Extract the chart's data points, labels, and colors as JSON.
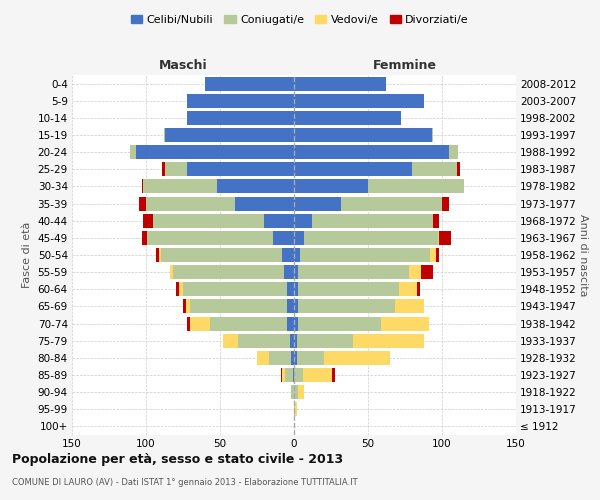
{
  "age_groups": [
    "100+",
    "95-99",
    "90-94",
    "85-89",
    "80-84",
    "75-79",
    "70-74",
    "65-69",
    "60-64",
    "55-59",
    "50-54",
    "45-49",
    "40-44",
    "35-39",
    "30-34",
    "25-29",
    "20-24",
    "15-19",
    "10-14",
    "5-9",
    "0-4"
  ],
  "birth_years": [
    "≤ 1912",
    "1913-1917",
    "1918-1922",
    "1923-1927",
    "1928-1932",
    "1933-1937",
    "1938-1942",
    "1943-1947",
    "1948-1952",
    "1953-1957",
    "1958-1962",
    "1963-1967",
    "1968-1972",
    "1973-1977",
    "1978-1982",
    "1983-1987",
    "1988-1992",
    "1993-1997",
    "1998-2002",
    "2003-2007",
    "2008-2012"
  ],
  "males": {
    "celibi": [
      0,
      0,
      0,
      1,
      2,
      3,
      5,
      5,
      5,
      7,
      8,
      14,
      20,
      40,
      52,
      72,
      107,
      87,
      72,
      72,
      60
    ],
    "coniugati": [
      0,
      0,
      2,
      5,
      15,
      35,
      52,
      65,
      70,
      75,
      82,
      85,
      75,
      60,
      50,
      15,
      4,
      1,
      0,
      0,
      0
    ],
    "vedovi": [
      0,
      0,
      0,
      2,
      8,
      10,
      13,
      3,
      3,
      2,
      1,
      0,
      0,
      0,
      0,
      0,
      0,
      0,
      0,
      0,
      0
    ],
    "divorziati": [
      0,
      0,
      0,
      1,
      0,
      0,
      2,
      2,
      2,
      0,
      2,
      4,
      7,
      5,
      1,
      2,
      0,
      0,
      0,
      0,
      0
    ]
  },
  "females": {
    "nubili": [
      0,
      0,
      0,
      0,
      2,
      2,
      3,
      3,
      3,
      3,
      4,
      7,
      12,
      32,
      50,
      80,
      105,
      93,
      72,
      88,
      62
    ],
    "coniugate": [
      0,
      1,
      3,
      6,
      18,
      38,
      56,
      65,
      68,
      75,
      88,
      90,
      82,
      68,
      65,
      30,
      6,
      1,
      0,
      0,
      0
    ],
    "vedove": [
      0,
      1,
      4,
      20,
      45,
      48,
      32,
      20,
      12,
      8,
      4,
      1,
      0,
      0,
      0,
      0,
      0,
      0,
      0,
      0,
      0
    ],
    "divorziate": [
      0,
      0,
      0,
      2,
      0,
      0,
      0,
      0,
      2,
      8,
      2,
      8,
      4,
      5,
      0,
      2,
      0,
      0,
      0,
      0,
      0
    ]
  },
  "colors": {
    "celibi": "#4472C4",
    "coniugati": "#B5C99A",
    "vedovi": "#FFD966",
    "divorziati": "#C00000"
  },
  "title": "Popolazione per età, sesso e stato civile - 2013",
  "subtitle": "COMUNE DI LAURO (AV) - Dati ISTAT 1° gennaio 2013 - Elaborazione TUTTITALIA.IT",
  "xlabel_left": "Maschi",
  "xlabel_right": "Femmine",
  "ylabel": "Fasce di età",
  "ylabel_right": "Anni di nascita",
  "xlim": 150,
  "background_color": "#f5f5f5",
  "plot_bg": "#ffffff"
}
